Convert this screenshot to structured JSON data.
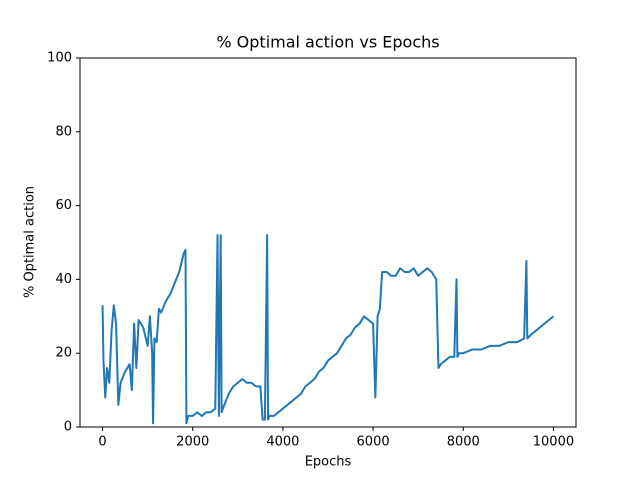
{
  "chart_data": {
    "type": "line",
    "title": "% Optimal action vs Epochs",
    "x_label": "Epochs",
    "y_label": "% Optimal action",
    "x": [
      0,
      20,
      60,
      100,
      150,
      200,
      250,
      300,
      350,
      400,
      500,
      600,
      650,
      700,
      750,
      800,
      900,
      1000,
      1050,
      1100,
      1120,
      1150,
      1200,
      1250,
      1300,
      1400,
      1500,
      1600,
      1700,
      1800,
      1840,
      1860,
      1900,
      2000,
      2100,
      2200,
      2300,
      2400,
      2500,
      2550,
      2580,
      2620,
      2640,
      2700,
      2800,
      2900,
      3000,
      3100,
      3200,
      3300,
      3400,
      3500,
      3550,
      3600,
      3650,
      3670,
      3700,
      3800,
      3900,
      4000,
      4100,
      4200,
      4300,
      4400,
      4500,
      4600,
      4700,
      4800,
      4900,
      5000,
      5100,
      5200,
      5300,
      5400,
      5500,
      5600,
      5700,
      5800,
      5900,
      6000,
      6050,
      6100,
      6150,
      6200,
      6300,
      6400,
      6500,
      6600,
      6700,
      6800,
      6900,
      7000,
      7100,
      7200,
      7300,
      7400,
      7450,
      7500,
      7600,
      7700,
      7800,
      7850,
      7870,
      7900,
      8000,
      8200,
      8400,
      8600,
      8800,
      9000,
      9200,
      9350,
      9400,
      9420,
      9500,
      9600,
      9700,
      9800,
      9900,
      9999
    ],
    "series": [
      {
        "name": "% Optimal action",
        "color": "#1f77b4",
        "values": [
          33,
          18,
          8,
          16,
          12,
          26,
          33,
          28,
          6,
          12,
          15,
          17,
          10,
          28,
          16,
          29,
          27,
          22,
          30,
          20,
          1,
          24,
          23,
          32,
          31,
          34,
          36,
          39,
          42,
          47,
          48,
          1,
          3,
          3,
          4,
          3,
          4,
          4,
          5,
          52,
          3,
          52,
          4,
          6,
          9,
          11,
          12,
          13,
          12,
          12,
          11,
          11,
          2,
          2,
          52,
          2,
          3,
          3,
          4,
          5,
          6,
          7,
          8,
          9,
          11,
          12,
          13,
          15,
          16,
          18,
          19,
          20,
          22,
          24,
          25,
          27,
          28,
          30,
          29,
          28,
          8,
          30,
          32,
          42,
          42,
          41,
          41,
          43,
          42,
          42,
          43,
          41,
          42,
          43,
          42,
          40,
          16,
          17,
          18,
          19,
          19,
          40,
          19,
          20,
          20,
          21,
          21,
          22,
          22,
          23,
          23,
          24,
          45,
          24,
          25,
          26,
          27,
          28,
          29,
          30
        ]
      }
    ],
    "xlim": [
      -500,
      10500
    ],
    "ylim": [
      0,
      100
    ],
    "xticks": [
      0,
      2000,
      4000,
      6000,
      8000,
      10000
    ],
    "yticks": [
      0,
      20,
      40,
      60,
      80,
      100
    ]
  }
}
